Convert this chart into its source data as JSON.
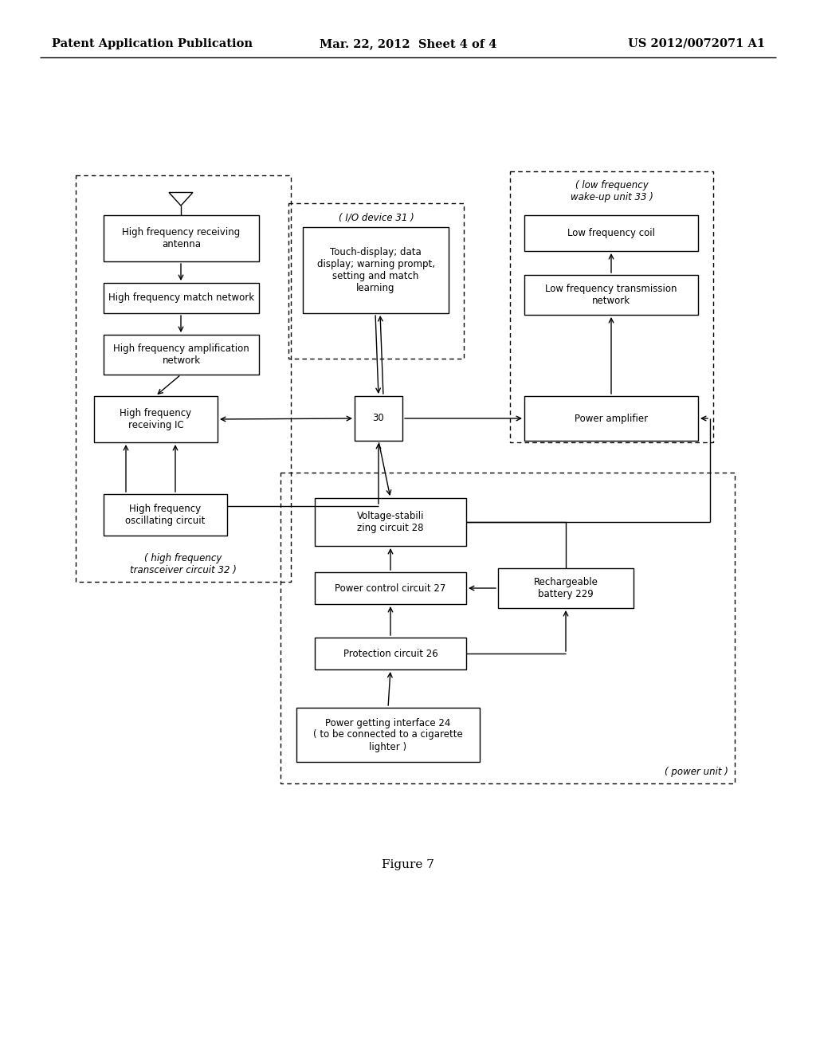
{
  "bg_color": "#ffffff",
  "header_left": "Patent Application Publication",
  "header_mid": "Mar. 22, 2012  Sheet 4 of 4",
  "header_right": "US 2012/0072071 A1",
  "figure_caption": "Figure 7"
}
